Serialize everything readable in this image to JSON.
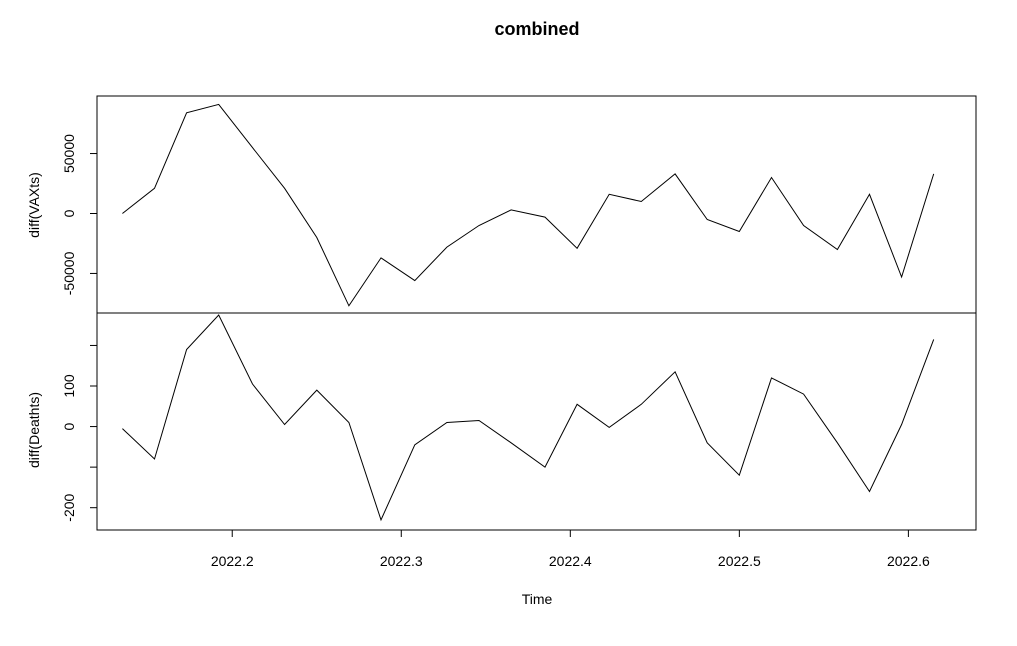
{
  "chart_data": {
    "type": "line",
    "title": "combined",
    "xlabel": "Time",
    "xlim": [
      2022.12,
      2022.64
    ],
    "x_ticks": [
      2022.2,
      2022.3,
      2022.4,
      2022.5,
      2022.6
    ],
    "x_tick_labels": [
      "2022.2",
      "2022.3",
      "2022.4",
      "2022.5",
      "2022.6"
    ],
    "grid": false,
    "legend": "none",
    "line_color": "#000000",
    "x": [
      2022.135,
      2022.154,
      2022.173,
      2022.192,
      2022.212,
      2022.231,
      2022.25,
      2022.269,
      2022.288,
      2022.308,
      2022.327,
      2022.346,
      2022.365,
      2022.385,
      2022.404,
      2022.423,
      2022.442,
      2022.462,
      2022.481,
      2022.5,
      2022.519,
      2022.538,
      2022.558,
      2022.577,
      2022.596,
      2022.615
    ],
    "panels": [
      {
        "ylabel": "diff(VAXts)",
        "ylim": [
          -83000,
          98000
        ],
        "y_ticks": [
          -50000,
          0,
          50000
        ],
        "y_tick_labels": [
          "-50000",
          "0",
          "50000"
        ],
        "values": [
          0,
          21000,
          84000,
          91000,
          55000,
          21000,
          -20000,
          -77000,
          -37000,
          -56000,
          -28000,
          -10000,
          3000,
          -3000,
          -29000,
          16000,
          10000,
          33000,
          -5000,
          -15000,
          30000,
          -10000,
          -30000,
          16000,
          -53000,
          33000
        ]
      },
      {
        "ylabel": "diff(Deathts)",
        "ylim": [
          -255,
          280
        ],
        "y_ticks": [
          -200,
          -100,
          0,
          100,
          200
        ],
        "y_tick_labels": [
          "-200",
          "",
          "0",
          "100",
          ""
        ],
        "values": [
          -5,
          -80,
          190,
          275,
          105,
          5,
          90,
          10,
          -230,
          -45,
          10,
          15,
          -40,
          -100,
          55,
          -2,
          55,
          135,
          -40,
          -120,
          120,
          80,
          -40,
          -160,
          5,
          215
        ]
      }
    ]
  }
}
